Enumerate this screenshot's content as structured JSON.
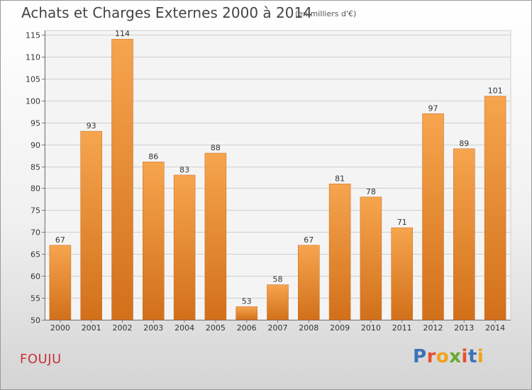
{
  "header": {
    "title": "Achats et Charges Externes 2000 à 2014",
    "subtitle": "(en milliers d'€)"
  },
  "footer": {
    "commune": "FOUJU",
    "logo": "Proxiti",
    "logo_colors": [
      "#3a73b8",
      "#e94f2c",
      "#f1a21a",
      "#6aaa2e",
      "#e94f2c",
      "#3a73b8",
      "#f1a21a"
    ]
  },
  "chart_data": {
    "type": "bar",
    "title": "Achats et Charges Externes 2000 à 2014",
    "subtitle": "(en milliers d'€)",
    "categories": [
      "2000",
      "2001",
      "2002",
      "2003",
      "2004",
      "2005",
      "2006",
      "2007",
      "2008",
      "2009",
      "2010",
      "2011",
      "2012",
      "2013",
      "2014"
    ],
    "values": [
      67,
      93,
      114,
      86,
      83,
      88,
      53,
      58,
      67,
      81,
      78,
      71,
      97,
      89,
      101
    ],
    "ylim": [
      50,
      115
    ],
    "yticks": [
      50,
      55,
      60,
      65,
      70,
      75,
      80,
      85,
      90,
      95,
      100,
      105,
      110,
      115
    ],
    "grid": true,
    "bar_color_top": "#f6a54e",
    "bar_color_bottom": "#d2701a",
    "xlabel": "",
    "ylabel": ""
  }
}
